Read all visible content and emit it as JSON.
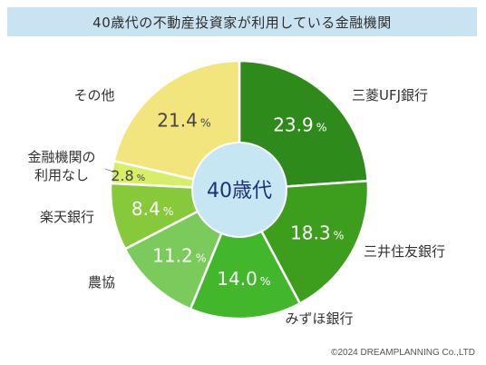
{
  "header": {
    "title": "40歳代の不動産投資家が利用している金融機関"
  },
  "center_label": "40歳代",
  "footer": {
    "copyright": "©2024 DREAMPLANNING Co.,LTD"
  },
  "chart_data": {
    "type": "pie",
    "title": "40歳代の不動産投資家が利用している金融機関",
    "unit": "%",
    "start": "12 o'clock, clockwise",
    "categories": [
      "三菱UFJ銀行",
      "三井住友銀行",
      "みずほ銀行",
      "農協",
      "楽天銀行",
      "金融機関の利用なし",
      "その他"
    ],
    "values": [
      23.9,
      18.3,
      14.0,
      11.2,
      8.4,
      2.8,
      21.4
    ],
    "value_labels": [
      "23.9",
      "18.3",
      "14.0",
      "11.2",
      "8.4",
      "2.8",
      "21.4"
    ],
    "colors": [
      "#2f8a1c",
      "#3d9e1e",
      "#43b72c",
      "#7acb5c",
      "#86c93a",
      "#d7ee6a",
      "#f2e57d"
    ],
    "label_colors": [
      "#ffffff",
      "#ffffff",
      "#ffffff",
      "#ffffff",
      "#ffffff",
      "#444444",
      "#444444"
    ],
    "center_color": "#c6e6f3"
  }
}
